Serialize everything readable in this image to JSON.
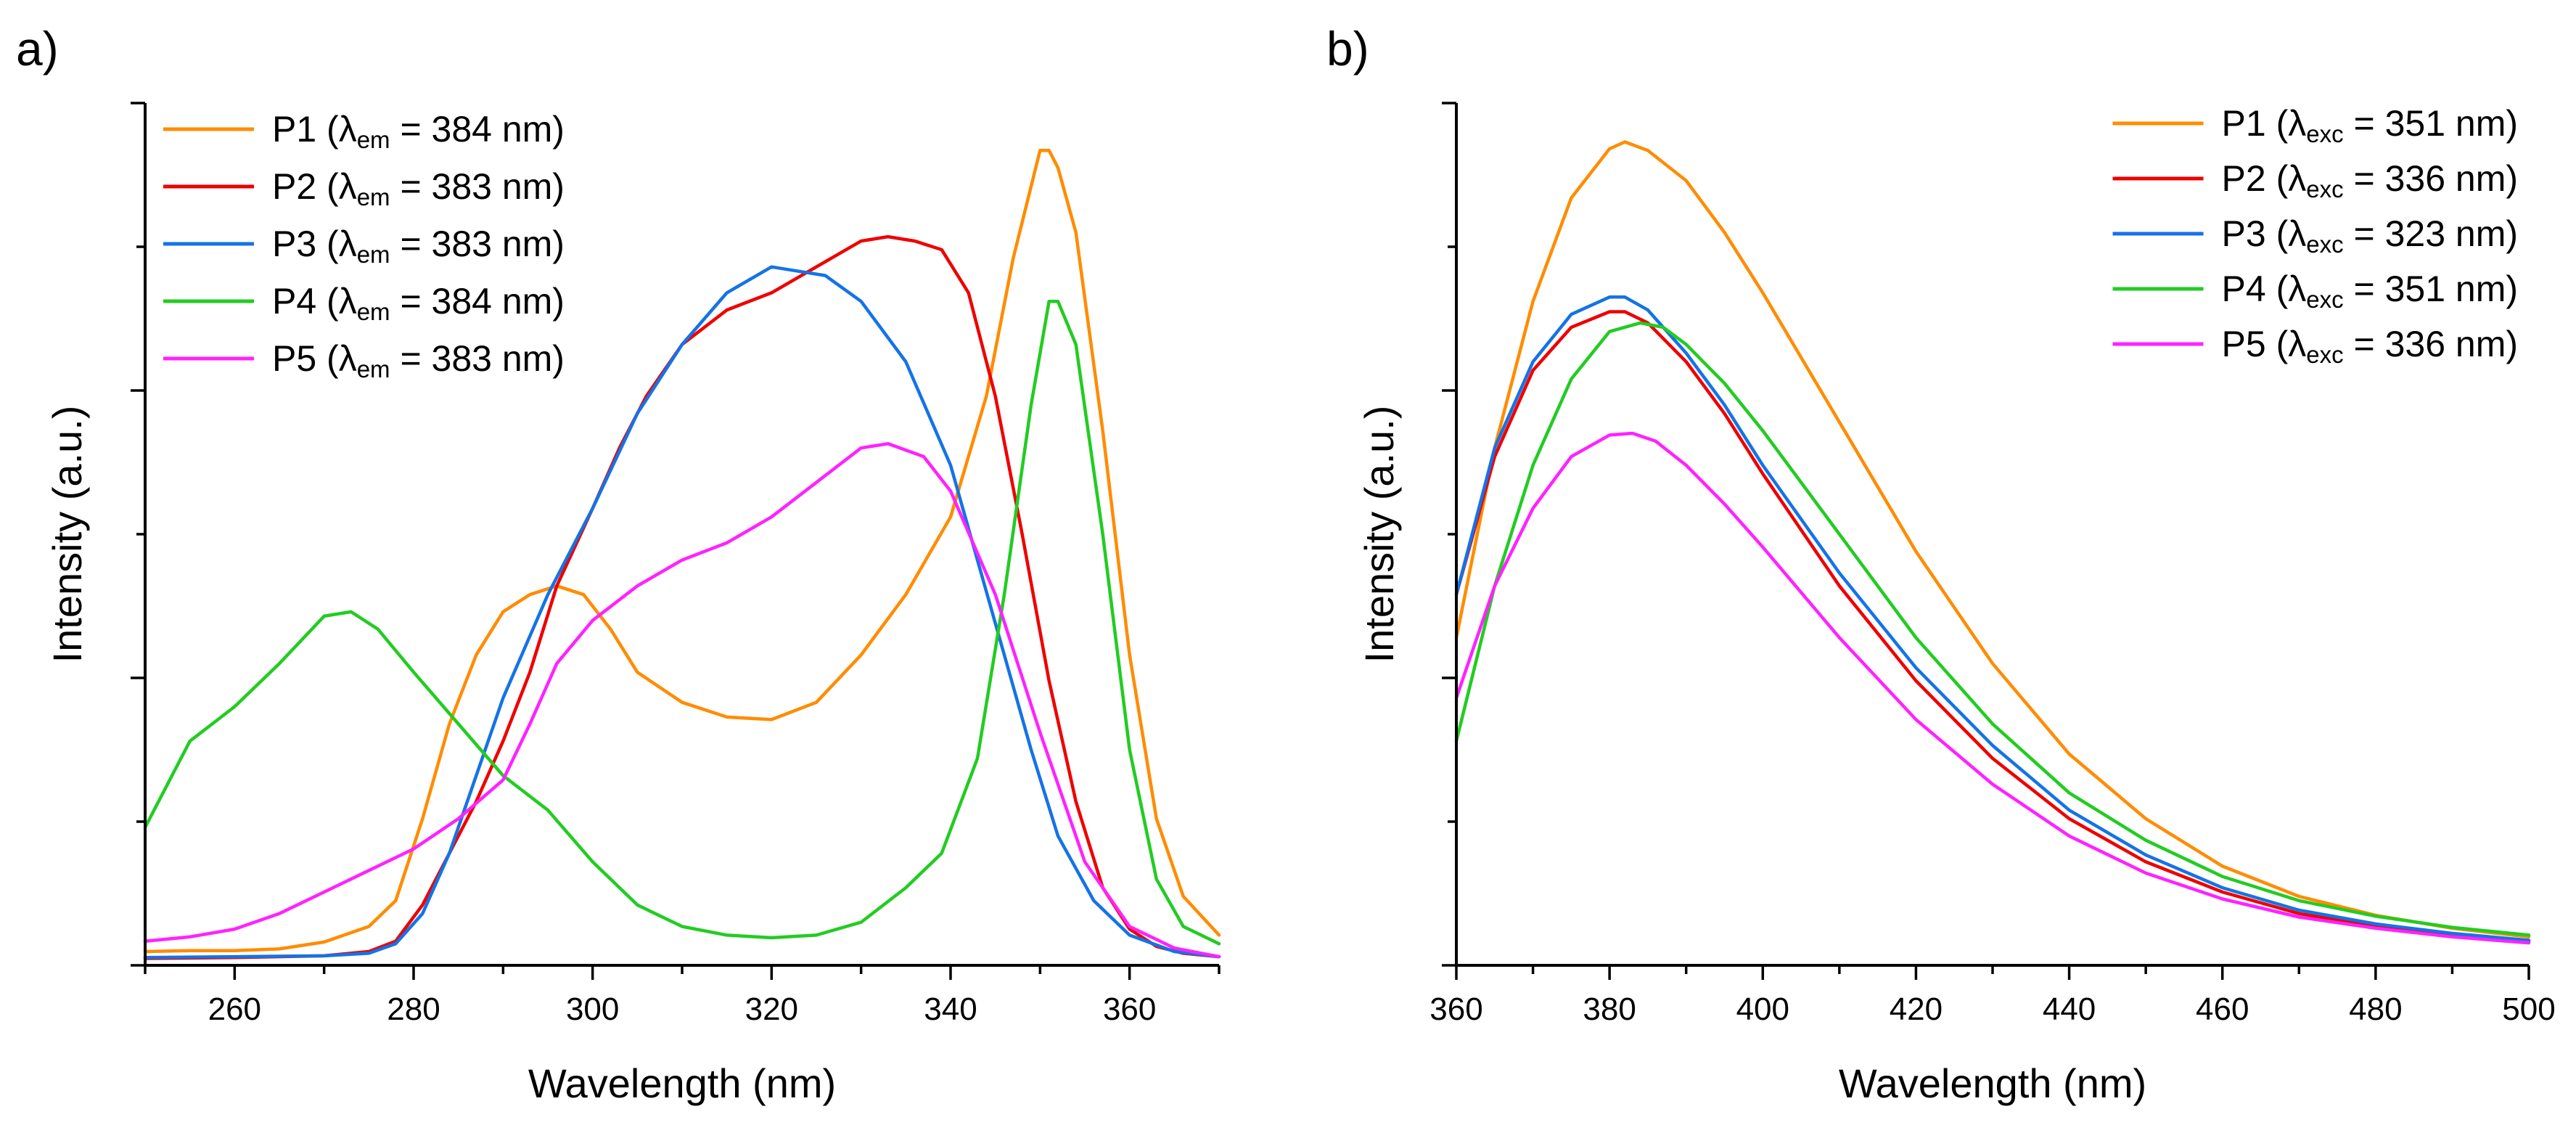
{
  "chart_data": [
    {
      "panel_label": "a)",
      "type": "line",
      "xlabel": "Wavelength (nm)",
      "ylabel": "Intensity (a.u.)",
      "xlim": [
        250,
        370
      ],
      "ylim": [
        0,
        1.0
      ],
      "xticks": [
        260,
        280,
        300,
        320,
        340,
        360
      ],
      "show_y_tick_labels": false,
      "legend_position": "top-left",
      "series": [
        {
          "name": "P1",
          "label_main": "P1 (λ",
          "label_sub": "em",
          "label_rest": " = 384 nm)",
          "color": "#ff8c00",
          "x": [
            250,
            255,
            260,
            265,
            270,
            275,
            278,
            281,
            284,
            287,
            290,
            293,
            296,
            299,
            302,
            305,
            310,
            315,
            320,
            325,
            330,
            335,
            340,
            344,
            347,
            350,
            351,
            352,
            354,
            357,
            360,
            363,
            366,
            370
          ],
          "y": [
            0.016,
            0.017,
            0.017,
            0.019,
            0.027,
            0.045,
            0.075,
            0.17,
            0.28,
            0.36,
            0.41,
            0.43,
            0.44,
            0.43,
            0.39,
            0.34,
            0.305,
            0.288,
            0.285,
            0.305,
            0.36,
            0.43,
            0.52,
            0.66,
            0.82,
            0.945,
            0.945,
            0.925,
            0.85,
            0.62,
            0.36,
            0.17,
            0.08,
            0.035
          ]
        },
        {
          "name": "P2",
          "label_main": "P2 (λ",
          "label_sub": "em",
          "label_rest": " = 383 nm)",
          "color": "#ee0000",
          "x": [
            250,
            260,
            270,
            275,
            278,
            281,
            284,
            287,
            290,
            293,
            296,
            300,
            303,
            306,
            310,
            315,
            320,
            325,
            330,
            333,
            336,
            339,
            342,
            345,
            348,
            351,
            354,
            357,
            360,
            363,
            366,
            370
          ],
          "y": [
            0.008,
            0.009,
            0.011,
            0.016,
            0.028,
            0.07,
            0.13,
            0.19,
            0.26,
            0.34,
            0.44,
            0.53,
            0.6,
            0.66,
            0.72,
            0.76,
            0.78,
            0.81,
            0.84,
            0.845,
            0.84,
            0.83,
            0.78,
            0.66,
            0.5,
            0.33,
            0.19,
            0.09,
            0.042,
            0.022,
            0.014,
            0.01
          ]
        },
        {
          "name": "P3",
          "label_main": "P3 (λ",
          "label_sub": "em",
          "label_rest": " = 383 nm)",
          "color": "#1473e6",
          "x": [
            250,
            260,
            270,
            275,
            278,
            281,
            284,
            287,
            290,
            295,
            300,
            305,
            310,
            315,
            320,
            323,
            326,
            330,
            335,
            340,
            343,
            346,
            349,
            352,
            356,
            360,
            365,
            370
          ],
          "y": [
            0.009,
            0.01,
            0.011,
            0.014,
            0.025,
            0.06,
            0.13,
            0.22,
            0.31,
            0.43,
            0.53,
            0.64,
            0.72,
            0.78,
            0.81,
            0.805,
            0.8,
            0.77,
            0.7,
            0.58,
            0.47,
            0.36,
            0.25,
            0.15,
            0.075,
            0.035,
            0.016,
            0.01
          ]
        },
        {
          "name": "P4",
          "label_main": "P4 (λ",
          "label_sub": "em",
          "label_rest": " = 384 nm)",
          "color": "#22cc22",
          "x": [
            250,
            255,
            260,
            265,
            270,
            273,
            276,
            280,
            285,
            290,
            295,
            300,
            305,
            310,
            315,
            320,
            325,
            330,
            335,
            339,
            343,
            346,
            349,
            351,
            352,
            354,
            357,
            360,
            363,
            366,
            370
          ],
          "y": [
            0.16,
            0.26,
            0.3,
            0.35,
            0.405,
            0.41,
            0.39,
            0.34,
            0.28,
            0.22,
            0.18,
            0.12,
            0.07,
            0.045,
            0.035,
            0.032,
            0.035,
            0.05,
            0.09,
            0.13,
            0.24,
            0.43,
            0.65,
            0.77,
            0.77,
            0.72,
            0.5,
            0.25,
            0.1,
            0.045,
            0.025
          ]
        },
        {
          "name": "P5",
          "label_main": "P5 (λ",
          "label_sub": "em",
          "label_rest": " = 383 nm)",
          "color": "#ff22ff",
          "x": [
            250,
            255,
            260,
            265,
            270,
            275,
            280,
            285,
            290,
            293,
            296,
            300,
            305,
            310,
            315,
            320,
            325,
            330,
            333,
            337,
            340,
            345,
            350,
            355,
            360,
            365,
            370
          ],
          "y": [
            0.028,
            0.033,
            0.042,
            0.06,
            0.085,
            0.11,
            0.135,
            0.17,
            0.215,
            0.28,
            0.35,
            0.4,
            0.44,
            0.47,
            0.49,
            0.52,
            0.56,
            0.6,
            0.605,
            0.59,
            0.55,
            0.43,
            0.27,
            0.12,
            0.045,
            0.02,
            0.01
          ]
        }
      ]
    },
    {
      "panel_label": "b)",
      "type": "line",
      "xlabel": "Wavelength (nm)",
      "ylabel": "Intensity (a.u.)",
      "xlim": [
        360,
        500
      ],
      "ylim": [
        0,
        1.0
      ],
      "xticks": [
        360,
        380,
        400,
        420,
        440,
        460,
        480,
        500
      ],
      "show_y_tick_labels": false,
      "legend_position": "top-right",
      "series": [
        {
          "name": "P1",
          "label_main": "P1 (λ",
          "label_sub": "exc",
          "label_rest": " = 351 nm)",
          "color": "#ff8c00",
          "x": [
            360,
            365,
            370,
            375,
            380,
            382,
            385,
            390,
            395,
            400,
            410,
            420,
            430,
            440,
            450,
            460,
            470,
            480,
            490,
            500
          ],
          "y": [
            0.38,
            0.6,
            0.77,
            0.89,
            0.947,
            0.955,
            0.945,
            0.91,
            0.85,
            0.78,
            0.63,
            0.48,
            0.35,
            0.245,
            0.17,
            0.115,
            0.08,
            0.058,
            0.043,
            0.033
          ]
        },
        {
          "name": "P2",
          "label_main": "P2 (λ",
          "label_sub": "exc",
          "label_rest": " = 336 nm)",
          "color": "#ee0000",
          "x": [
            360,
            365,
            370,
            375,
            380,
            382,
            385,
            390,
            395,
            400,
            410,
            420,
            430,
            440,
            450,
            460,
            470,
            480,
            490,
            500
          ],
          "y": [
            0.43,
            0.59,
            0.69,
            0.74,
            0.758,
            0.758,
            0.745,
            0.7,
            0.64,
            0.57,
            0.44,
            0.33,
            0.24,
            0.17,
            0.12,
            0.085,
            0.06,
            0.045,
            0.035,
            0.028
          ]
        },
        {
          "name": "P3",
          "label_main": "P3 (λ",
          "label_sub": "exc",
          "label_rest": " = 323 nm)",
          "color": "#1473e6",
          "x": [
            360,
            365,
            370,
            375,
            380,
            382,
            385,
            390,
            395,
            400,
            410,
            420,
            430,
            440,
            450,
            460,
            470,
            480,
            490,
            500
          ],
          "y": [
            0.43,
            0.6,
            0.7,
            0.755,
            0.775,
            0.775,
            0.76,
            0.71,
            0.65,
            0.58,
            0.455,
            0.345,
            0.255,
            0.18,
            0.128,
            0.09,
            0.064,
            0.048,
            0.037,
            0.029
          ]
        },
        {
          "name": "P4",
          "label_main": "P4 (λ",
          "label_sub": "exc",
          "label_rest": " = 351 nm)",
          "color": "#22cc22",
          "x": [
            360,
            365,
            370,
            375,
            380,
            384,
            387,
            390,
            395,
            400,
            410,
            420,
            430,
            440,
            450,
            460,
            470,
            480,
            490,
            500
          ],
          "y": [
            0.26,
            0.44,
            0.58,
            0.68,
            0.735,
            0.745,
            0.74,
            0.72,
            0.675,
            0.62,
            0.5,
            0.38,
            0.28,
            0.2,
            0.145,
            0.103,
            0.075,
            0.057,
            0.044,
            0.035
          ]
        },
        {
          "name": "P5",
          "label_main": "P5 (λ",
          "label_sub": "exc",
          "label_rest": " = 336 nm)",
          "color": "#ff22ff",
          "x": [
            360,
            365,
            370,
            375,
            380,
            383,
            386,
            390,
            395,
            400,
            410,
            420,
            430,
            440,
            450,
            460,
            470,
            480,
            490,
            500
          ],
          "y": [
            0.31,
            0.44,
            0.53,
            0.59,
            0.615,
            0.617,
            0.608,
            0.58,
            0.535,
            0.485,
            0.38,
            0.285,
            0.21,
            0.15,
            0.107,
            0.077,
            0.056,
            0.043,
            0.033,
            0.026
          ]
        }
      ]
    }
  ]
}
